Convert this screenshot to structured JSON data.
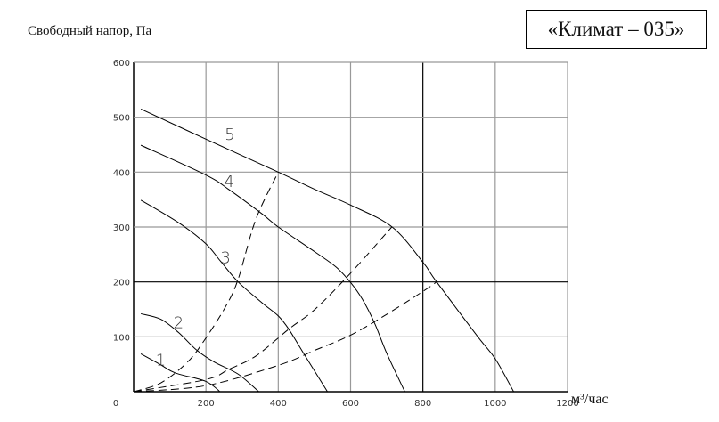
{
  "chart_data": {
    "type": "line",
    "title": "«Климат – 035»",
    "ylabel": "Свободный напор, Па",
    "xlabel": "м³/час",
    "xlim": [
      0,
      1200
    ],
    "ylim": [
      0,
      600
    ],
    "xticks": [
      0,
      200,
      400,
      600,
      800,
      1000,
      1200
    ],
    "yticks": [
      0,
      100,
      200,
      300,
      400,
      500,
      600
    ],
    "grid": true,
    "emphasized_gridlines": {
      "x": 800,
      "y": 200
    },
    "series": [
      {
        "name": "1",
        "style": "solid",
        "label_at": [
          75,
          59
        ],
        "x": [
          20,
          75,
          116,
          199,
          239
        ],
        "y": [
          69,
          49,
          34,
          19,
          0
        ]
      },
      {
        "name": "2",
        "style": "solid",
        "label_at": [
          124,
          127
        ],
        "x": [
          20,
          75,
          124,
          174,
          223,
          289,
          346
        ],
        "y": [
          142,
          132,
          108,
          76,
          54,
          32,
          0
        ]
      },
      {
        "name": "3",
        "style": "solid",
        "label_at": [
          254,
          246
        ],
        "x": [
          20,
          124,
          199,
          240,
          289,
          355,
          400,
          429,
          470,
          536
        ],
        "y": [
          349,
          308,
          270,
          238,
          200,
          162,
          138,
          114,
          70,
          0
        ]
      },
      {
        "name": "4",
        "style": "solid",
        "label_at": [
          264,
          384
        ],
        "x": [
          20,
          199,
          264,
          355,
          400,
          503,
          560,
          600,
          633,
          667,
          700,
          750
        ],
        "y": [
          449,
          395,
          368,
          324,
          300,
          254,
          227,
          199,
          168,
          124,
          70,
          0
        ]
      },
      {
        "name": "5",
        "style": "solid",
        "label_at": [
          266,
          470
        ],
        "x": [
          20,
          200,
          400,
          503,
          600,
          715,
          800,
          838,
          952,
          1000,
          1051
        ],
        "y": [
          515,
          460,
          400,
          368,
          340,
          300,
          236,
          200,
          100,
          60,
          0
        ]
      },
      {
        "style": "dashed",
        "x": [
          0,
          75,
          149,
          199,
          256,
          289,
          338,
          400
        ],
        "y": [
          0,
          16,
          54,
          97,
          157,
          205,
          314,
          400
        ]
      },
      {
        "style": "dashed",
        "x": [
          0,
          199,
          264,
          338,
          429,
          503,
          600,
          714
        ],
        "y": [
          0,
          22,
          41,
          65,
          114,
          151,
          216,
          300
        ]
      },
      {
        "style": "dashed",
        "x": [
          0,
          199,
          400,
          503,
          600,
          700,
          803,
          838
        ],
        "y": [
          0,
          11,
          48,
          76,
          103,
          141,
          184,
          200
        ]
      }
    ],
    "colors": {
      "line": "#000000",
      "grid": "#999999",
      "grid_emphasis": "#000000"
    }
  }
}
